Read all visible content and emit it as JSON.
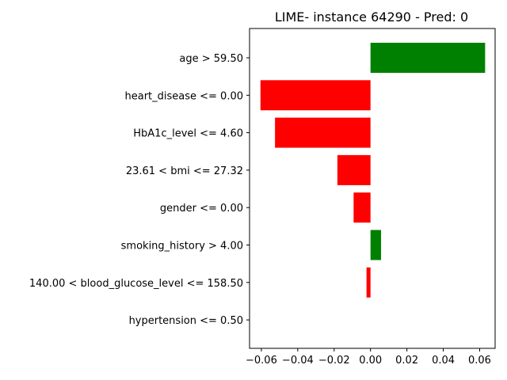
{
  "chart_data": {
    "type": "bar",
    "orientation": "horizontal",
    "title": "LIME- instance 64290 - Pred: 0",
    "xlabel": "",
    "ylabel": "",
    "xlim": [
      -0.0665,
      0.0685
    ],
    "xticks": [
      -0.06,
      -0.04,
      -0.02,
      0.0,
      0.02,
      0.04,
      0.06
    ],
    "xtick_labels": [
      "−0.06",
      "−0.04",
      "−0.02",
      "0.00",
      "0.02",
      "0.04",
      "0.06"
    ],
    "grid": false,
    "legend": "none",
    "positive_color": "#008000",
    "negative_color": "#ff0000",
    "categories": [
      "age > 59.50",
      "heart_disease <= 0.00",
      "HbA1c_level <= 4.60",
      "23.61 < bmi <= 27.32",
      "gender <= 0.00",
      "smoking_history > 4.00",
      "140.00 < blood_glucose_level <= 158.50",
      "hypertension <= 0.50"
    ],
    "values": [
      0.063,
      -0.0605,
      -0.0525,
      -0.0182,
      -0.0093,
      0.0058,
      -0.0022,
      0.0
    ]
  }
}
